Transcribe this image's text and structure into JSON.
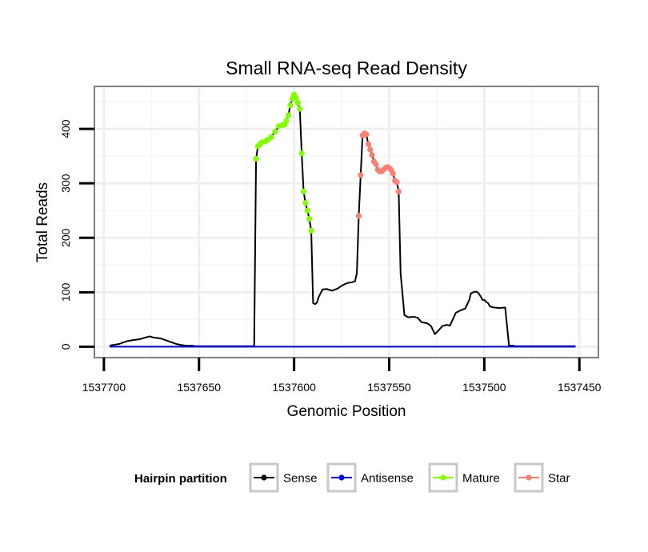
{
  "chart_data": {
    "type": "line",
    "title": "Small RNA-seq Read Density",
    "xlabel": "Genomic Position",
    "ylabel": "Total Reads",
    "xlim": [
      1537705,
      1537440
    ],
    "x_reversed": true,
    "ylim": [
      -20,
      478
    ],
    "grid": true,
    "x_ticks": [
      1537700,
      1537650,
      1537600,
      1537550,
      1537500,
      1537450
    ],
    "x_tick_labels": [
      "1537700",
      "1537650",
      "1537600",
      "1537550",
      "1537500",
      "1537450"
    ],
    "y_ticks": [
      0,
      100,
      200,
      300,
      400
    ],
    "y_tick_labels": [
      "0",
      "100",
      "200",
      "300",
      "400"
    ],
    "legend": {
      "title": "Hairpin partition",
      "placement": "bottom",
      "entries": [
        {
          "name": "Sense",
          "color": "#000000"
        },
        {
          "name": "Antisense",
          "color": "#0000ff"
        },
        {
          "name": "Mature",
          "color": "#7fff00"
        },
        {
          "name": "Star",
          "color": "#fa8072"
        }
      ]
    },
    "series": [
      {
        "name": "Sense",
        "kind": "line",
        "color": "#000000",
        "x": [
          1537697,
          1537692,
          1537688,
          1537685,
          1537681,
          1537678,
          1537676,
          1537674,
          1537672,
          1537670,
          1537666,
          1537662,
          1537659,
          1537657,
          1537654,
          1537652,
          1537650,
          1537640,
          1537630,
          1537621,
          1537620,
          1537619,
          1537618,
          1537617,
          1537615,
          1537614,
          1537612,
          1537610,
          1537608,
          1537606,
          1537605,
          1537604,
          1537603,
          1537602,
          1537601,
          1537600,
          1537599,
          1537598,
          1537597,
          1537596,
          1537595,
          1537594,
          1537593,
          1537592,
          1537591,
          1537590,
          1537589,
          1537588,
          1537587,
          1537585,
          1537583,
          1537580,
          1537577,
          1537575,
          1537572,
          1537570,
          1537568,
          1537567,
          1537566,
          1537565,
          1537564,
          1537563,
          1537562,
          1537561,
          1537560,
          1537559,
          1537558,
          1537557,
          1537556,
          1537555,
          1537554,
          1537553,
          1537552,
          1537551,
          1537550,
          1537549,
          1537548,
          1537547,
          1537546,
          1537545,
          1537544,
          1537542,
          1537540,
          1537537,
          1537535,
          1537533,
          1537530,
          1537528,
          1537526,
          1537524,
          1537522,
          1537520,
          1537518,
          1537515,
          1537513,
          1537510,
          1537508,
          1537507,
          1537505,
          1537504,
          1537503,
          1537502,
          1537501,
          1537500,
          1537499,
          1537498,
          1537497,
          1537495,
          1537492,
          1537489,
          1537487,
          1537486,
          1537485,
          1537484,
          1537482,
          1537480,
          1537470,
          1537460,
          1537452
        ],
        "y": [
          2,
          5,
          10,
          12,
          14,
          17,
          19,
          17,
          16,
          15,
          10,
          5,
          3,
          2,
          2,
          1,
          1,
          1,
          1,
          1,
          345,
          368,
          372,
          375,
          377,
          380,
          385,
          395,
          405,
          407,
          408,
          415,
          425,
          443,
          455,
          463,
          457,
          448,
          437,
          355,
          285,
          264,
          250,
          235,
          213,
          80,
          78,
          81,
          92,
          105,
          106,
          103,
          107,
          112,
          117,
          118,
          120,
          135,
          240,
          315,
          388,
          392,
          390,
          372,
          362,
          352,
          340,
          335,
          325,
          322,
          322,
          325,
          328,
          330,
          328,
          325,
          318,
          305,
          302,
          285,
          135,
          58,
          54,
          55,
          53,
          45,
          43,
          38,
          23,
          30,
          38,
          40,
          39,
          62,
          66,
          70,
          85,
          98,
          101,
          101,
          98,
          93,
          86,
          86,
          82,
          80,
          74,
          72,
          71,
          72,
          2,
          2,
          2,
          1,
          1,
          1,
          1,
          1,
          1
        ],
        "markers": false
      },
      {
        "name": "Antisense",
        "kind": "line",
        "color": "#0000ff",
        "x": [
          1537697,
          1537452
        ],
        "y": [
          0,
          0
        ],
        "markers": false
      },
      {
        "name": "Mature",
        "kind": "points",
        "color": "#7fff00",
        "x": [
          1537620,
          1537619,
          1537618,
          1537617,
          1537615,
          1537614,
          1537612,
          1537610,
          1537608,
          1537606,
          1537605,
          1537604,
          1537603,
          1537602,
          1537601,
          1537600,
          1537599,
          1537598,
          1537597,
          1537596,
          1537595,
          1537594,
          1537593,
          1537592,
          1537591
        ],
        "y": [
          345,
          368,
          372,
          375,
          377,
          380,
          385,
          395,
          405,
          407,
          408,
          415,
          425,
          443,
          455,
          463,
          457,
          448,
          437,
          355,
          285,
          264,
          250,
          235,
          213
        ]
      },
      {
        "name": "Star",
        "kind": "points",
        "color": "#fa8072",
        "x": [
          1537566,
          1537565,
          1537564,
          1537563,
          1537562,
          1537561,
          1537560,
          1537559,
          1537558,
          1537557,
          1537556,
          1537555,
          1537554,
          1537553,
          1537552,
          1537551,
          1537550,
          1537549,
          1537548,
          1537547,
          1537546,
          1537545
        ],
        "y": [
          240,
          315,
          388,
          392,
          390,
          372,
          362,
          352,
          340,
          335,
          325,
          322,
          322,
          325,
          328,
          330,
          328,
          325,
          318,
          305,
          302,
          285
        ]
      }
    ]
  }
}
